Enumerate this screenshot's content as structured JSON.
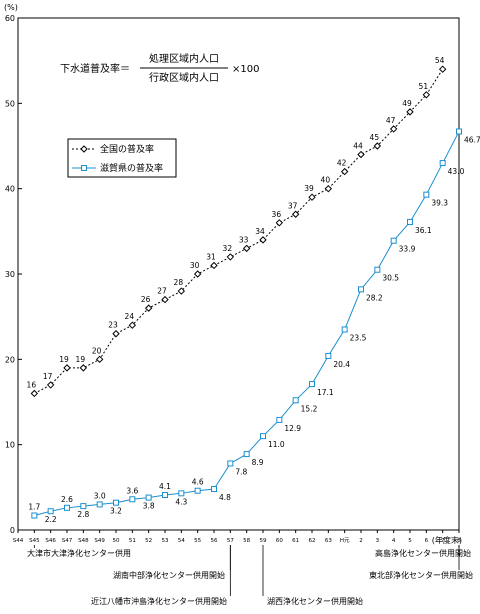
{
  "chart_data": {
    "type": "line",
    "y_unit": "(%)",
    "x_unit": "(年度末)",
    "ylim": [
      0,
      60
    ],
    "yticks": [
      0,
      10,
      20,
      30,
      40,
      50,
      60
    ],
    "x_labels": [
      "S44",
      "S45",
      "S46",
      "S47",
      "S48",
      "S49",
      "50",
      "51",
      "52",
      "53",
      "54",
      "55",
      "56",
      "57",
      "58",
      "59",
      "60",
      "61",
      "62",
      "63",
      "H元",
      "2",
      "3",
      "4",
      "5",
      "6",
      "7",
      "8"
    ],
    "formula": {
      "lhs": "下水道普及率＝",
      "numerator": "処理区域内人口",
      "denominator": "行政区域内人口",
      "multiplier": "×100"
    },
    "series": [
      {
        "name": "全国の普及率",
        "color": "#000000",
        "values": [
          null,
          16,
          17,
          19,
          19,
          20,
          23,
          24,
          26,
          27,
          28,
          30,
          31,
          32,
          33,
          34,
          36,
          37,
          39,
          40,
          42,
          44,
          45,
          47,
          49,
          51,
          54,
          null
        ],
        "labels": [
          "",
          "16",
          "17",
          "19",
          "19",
          "20",
          "23",
          "24",
          "26",
          "27",
          "28",
          "30",
          "31",
          "32",
          "33",
          "34",
          "36",
          "37",
          "39",
          "40",
          "42",
          "44",
          "45",
          "47",
          "49",
          "51",
          "54",
          ""
        ]
      },
      {
        "name": "滋賀県の普及率",
        "color": "#1a8fd0",
        "values": [
          null,
          1.7,
          2.2,
          2.6,
          2.8,
          3.0,
          3.2,
          3.6,
          3.8,
          4.1,
          4.3,
          4.6,
          4.8,
          7.8,
          8.9,
          11.0,
          12.9,
          15.2,
          17.1,
          20.4,
          23.5,
          28.2,
          30.5,
          33.9,
          36.1,
          39.3,
          43.0,
          46.7
        ],
        "labels": [
          "",
          "1.7",
          "2.2",
          "2.6",
          "2.8",
          "3.0",
          "3.2",
          "3.6",
          "3.8",
          "4.1",
          "4.3",
          "4.6",
          "4.8",
          "7.8",
          "8.9",
          "11.0",
          "12.9",
          "15.2",
          "17.1",
          "20.4",
          "23.5",
          "28.2",
          "30.5",
          "33.9",
          "36.1",
          "39.3",
          "43.0",
          "46.7"
        ]
      }
    ],
    "legend_position": "upper-left",
    "annotations": [
      {
        "at": "S45",
        "text": "大津市大津浄化センター供用"
      },
      {
        "at": "57",
        "text": "湖南中部浄化センター供用開始"
      },
      {
        "at": "57",
        "text": "近江八幡市沖島浄化センター供用開始"
      },
      {
        "at": "59",
        "text": "湖西浄化センター供用開始"
      },
      {
        "at": "8",
        "text": "高島浄化センター供用開始"
      },
      {
        "at": "8",
        "text": "東北部浄化センター供用開始"
      }
    ]
  }
}
